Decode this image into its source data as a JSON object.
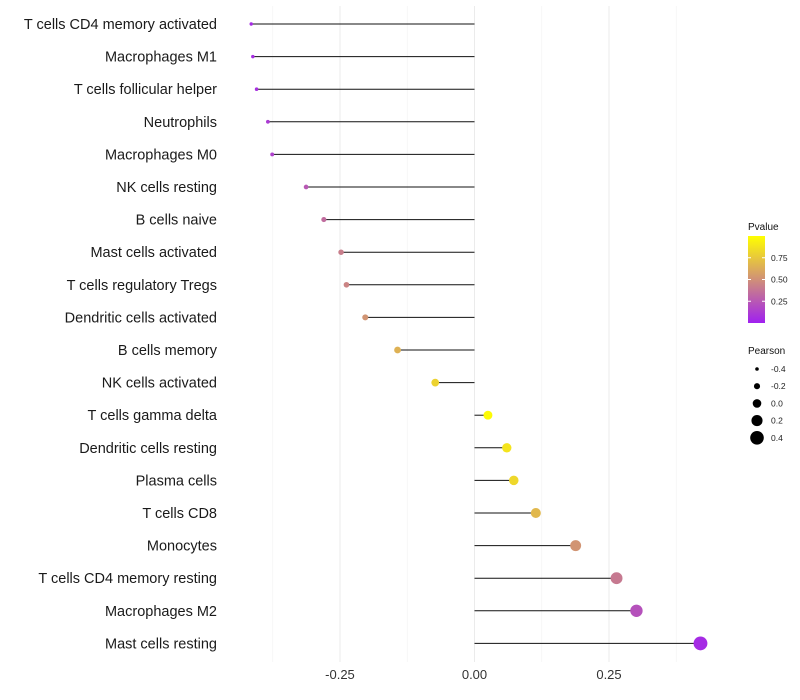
{
  "chart_data": {
    "type": "lollipop",
    "x_axis": {
      "ticks": [
        -0.25,
        0.0,
        0.25
      ],
      "tick_labels": [
        "-0.25",
        "0.00",
        "0.25"
      ],
      "xlim": [
        -0.46,
        0.46
      ]
    },
    "categories": [
      "T cells CD4 memory activated",
      "Macrophages M1",
      "T cells follicular helper",
      "Neutrophils",
      "Macrophages M0",
      "NK cells resting",
      "B cells naive",
      "Mast cells activated",
      "T cells regulatory  Tregs ",
      "Dendritic cells activated",
      "B cells memory",
      "NK cells activated",
      "T cells gamma delta",
      "Dendritic cells resting",
      "Plasma cells",
      "T cells CD8",
      "Monocytes",
      "T cells CD4 memory resting",
      "Macrophages M2",
      "Mast cells resting"
    ],
    "pearson": [
      -0.415,
      -0.412,
      -0.405,
      -0.384,
      -0.376,
      -0.313,
      -0.28,
      -0.248,
      -0.238,
      -0.203,
      -0.143,
      -0.073,
      0.025,
      0.06,
      0.073,
      0.114,
      0.188,
      0.264,
      0.301,
      0.42
    ],
    "pvalue": [
      0.05,
      0.06,
      0.07,
      0.12,
      0.15,
      0.25,
      0.34,
      0.42,
      0.45,
      0.52,
      0.65,
      0.8,
      0.98,
      0.88,
      0.82,
      0.68,
      0.52,
      0.4,
      0.22,
      0.05
    ],
    "legend_color": {
      "title": "Pvalue",
      "ticks": [
        0.25,
        0.5,
        0.75
      ],
      "tick_labels": [
        "0.25",
        "0.50",
        "0.75"
      ],
      "range": [
        0.0,
        1.0
      ],
      "colors": [
        "#a020f0",
        "#ffff00"
      ]
    },
    "legend_size": {
      "title": "Pearson",
      "values": [
        -0.4,
        -0.2,
        0.0,
        0.2,
        0.4
      ],
      "labels": [
        "-0.4",
        "-0.2",
        "0.0",
        "0.2",
        "0.4"
      ]
    }
  }
}
